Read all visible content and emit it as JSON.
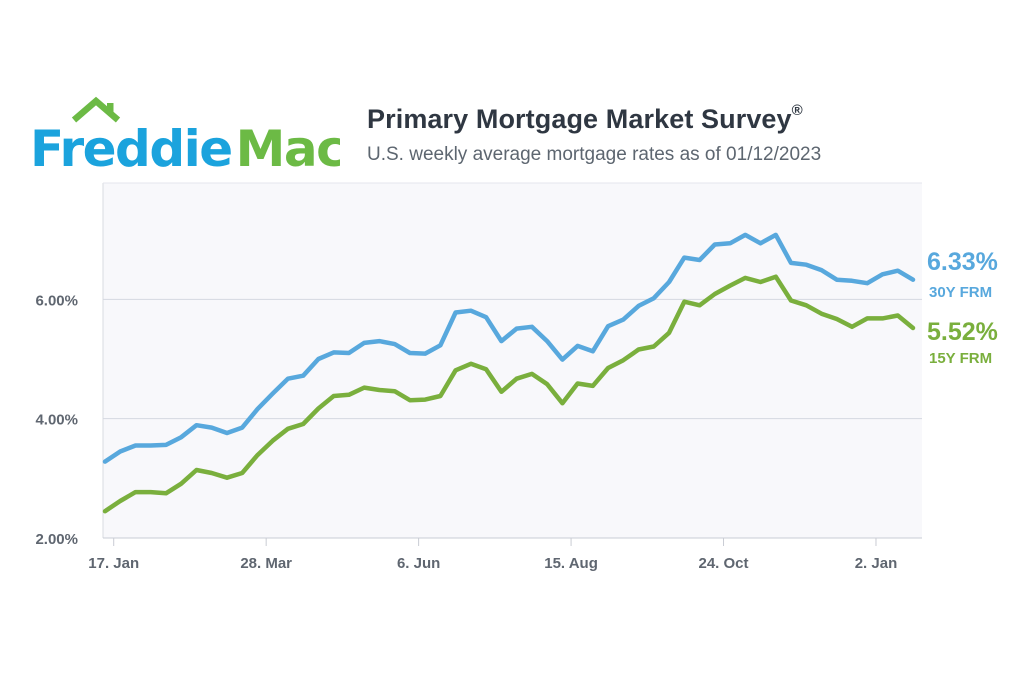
{
  "brand": {
    "logo_word1": "Freddie",
    "logo_word2": "Mac",
    "colors": {
      "blue": "#1ba3dd",
      "green": "#6cba45"
    }
  },
  "header": {
    "title": "Primary Mortgage Market Survey",
    "title_mark": "®",
    "subtitle": "U.S. weekly average mortgage rates as of 01/12/2023"
  },
  "chart_data": {
    "type": "line",
    "title": "Primary Mortgage Market Survey®",
    "subtitle": "U.S. weekly average mortgage rates as of 01/12/2023",
    "x_start": "2022-01-13",
    "x_step_days": 7,
    "xtick_labels": [
      "17. Jan",
      "28. Mar",
      "6. Jun",
      "15. Aug",
      "24. Oct",
      "2. Jan"
    ],
    "xtick_dates": [
      "2022-01-17",
      "2022-03-28",
      "2022-06-06",
      "2022-08-15",
      "2022-10-24",
      "2023-01-02"
    ],
    "ytick_labels": [
      "2.00%",
      "4.00%",
      "6.00%"
    ],
    "ytick_values": [
      2,
      4,
      6
    ],
    "ylim": [
      2,
      7.95
    ],
    "grid": true,
    "series": [
      {
        "name": "30Y FRM",
        "color": "#58a8dd",
        "end_label": "6.33%",
        "values": [
          3.28,
          3.45,
          3.55,
          3.55,
          3.56,
          3.69,
          3.89,
          3.85,
          3.76,
          3.85,
          4.16,
          4.42,
          4.67,
          4.72,
          5.0,
          5.11,
          5.1,
          5.27,
          5.3,
          5.25,
          5.1,
          5.09,
          5.23,
          5.78,
          5.81,
          5.7,
          5.3,
          5.51,
          5.54,
          5.3,
          4.99,
          5.22,
          5.13,
          5.55,
          5.66,
          5.89,
          6.02,
          6.29,
          6.7,
          6.66,
          6.92,
          6.94,
          7.08,
          6.94,
          7.08,
          6.61,
          6.58,
          6.49,
          6.33,
          6.31,
          6.27,
          6.42,
          6.48,
          6.33
        ]
      },
      {
        "name": "15Y FRM",
        "color": "#7aaf3d",
        "end_label": "5.52%",
        "values": [
          2.45,
          2.62,
          2.77,
          2.77,
          2.75,
          2.91,
          3.14,
          3.09,
          3.01,
          3.09,
          3.39,
          3.63,
          3.83,
          3.91,
          4.17,
          4.38,
          4.4,
          4.52,
          4.48,
          4.46,
          4.31,
          4.32,
          4.38,
          4.81,
          4.92,
          4.83,
          4.45,
          4.67,
          4.75,
          4.58,
          4.26,
          4.59,
          4.55,
          4.85,
          4.98,
          5.16,
          5.21,
          5.44,
          5.96,
          5.9,
          6.09,
          6.23,
          6.36,
          6.29,
          6.38,
          5.98,
          5.9,
          5.76,
          5.67,
          5.54,
          5.68,
          5.68,
          5.73,
          5.52
        ]
      }
    ]
  }
}
